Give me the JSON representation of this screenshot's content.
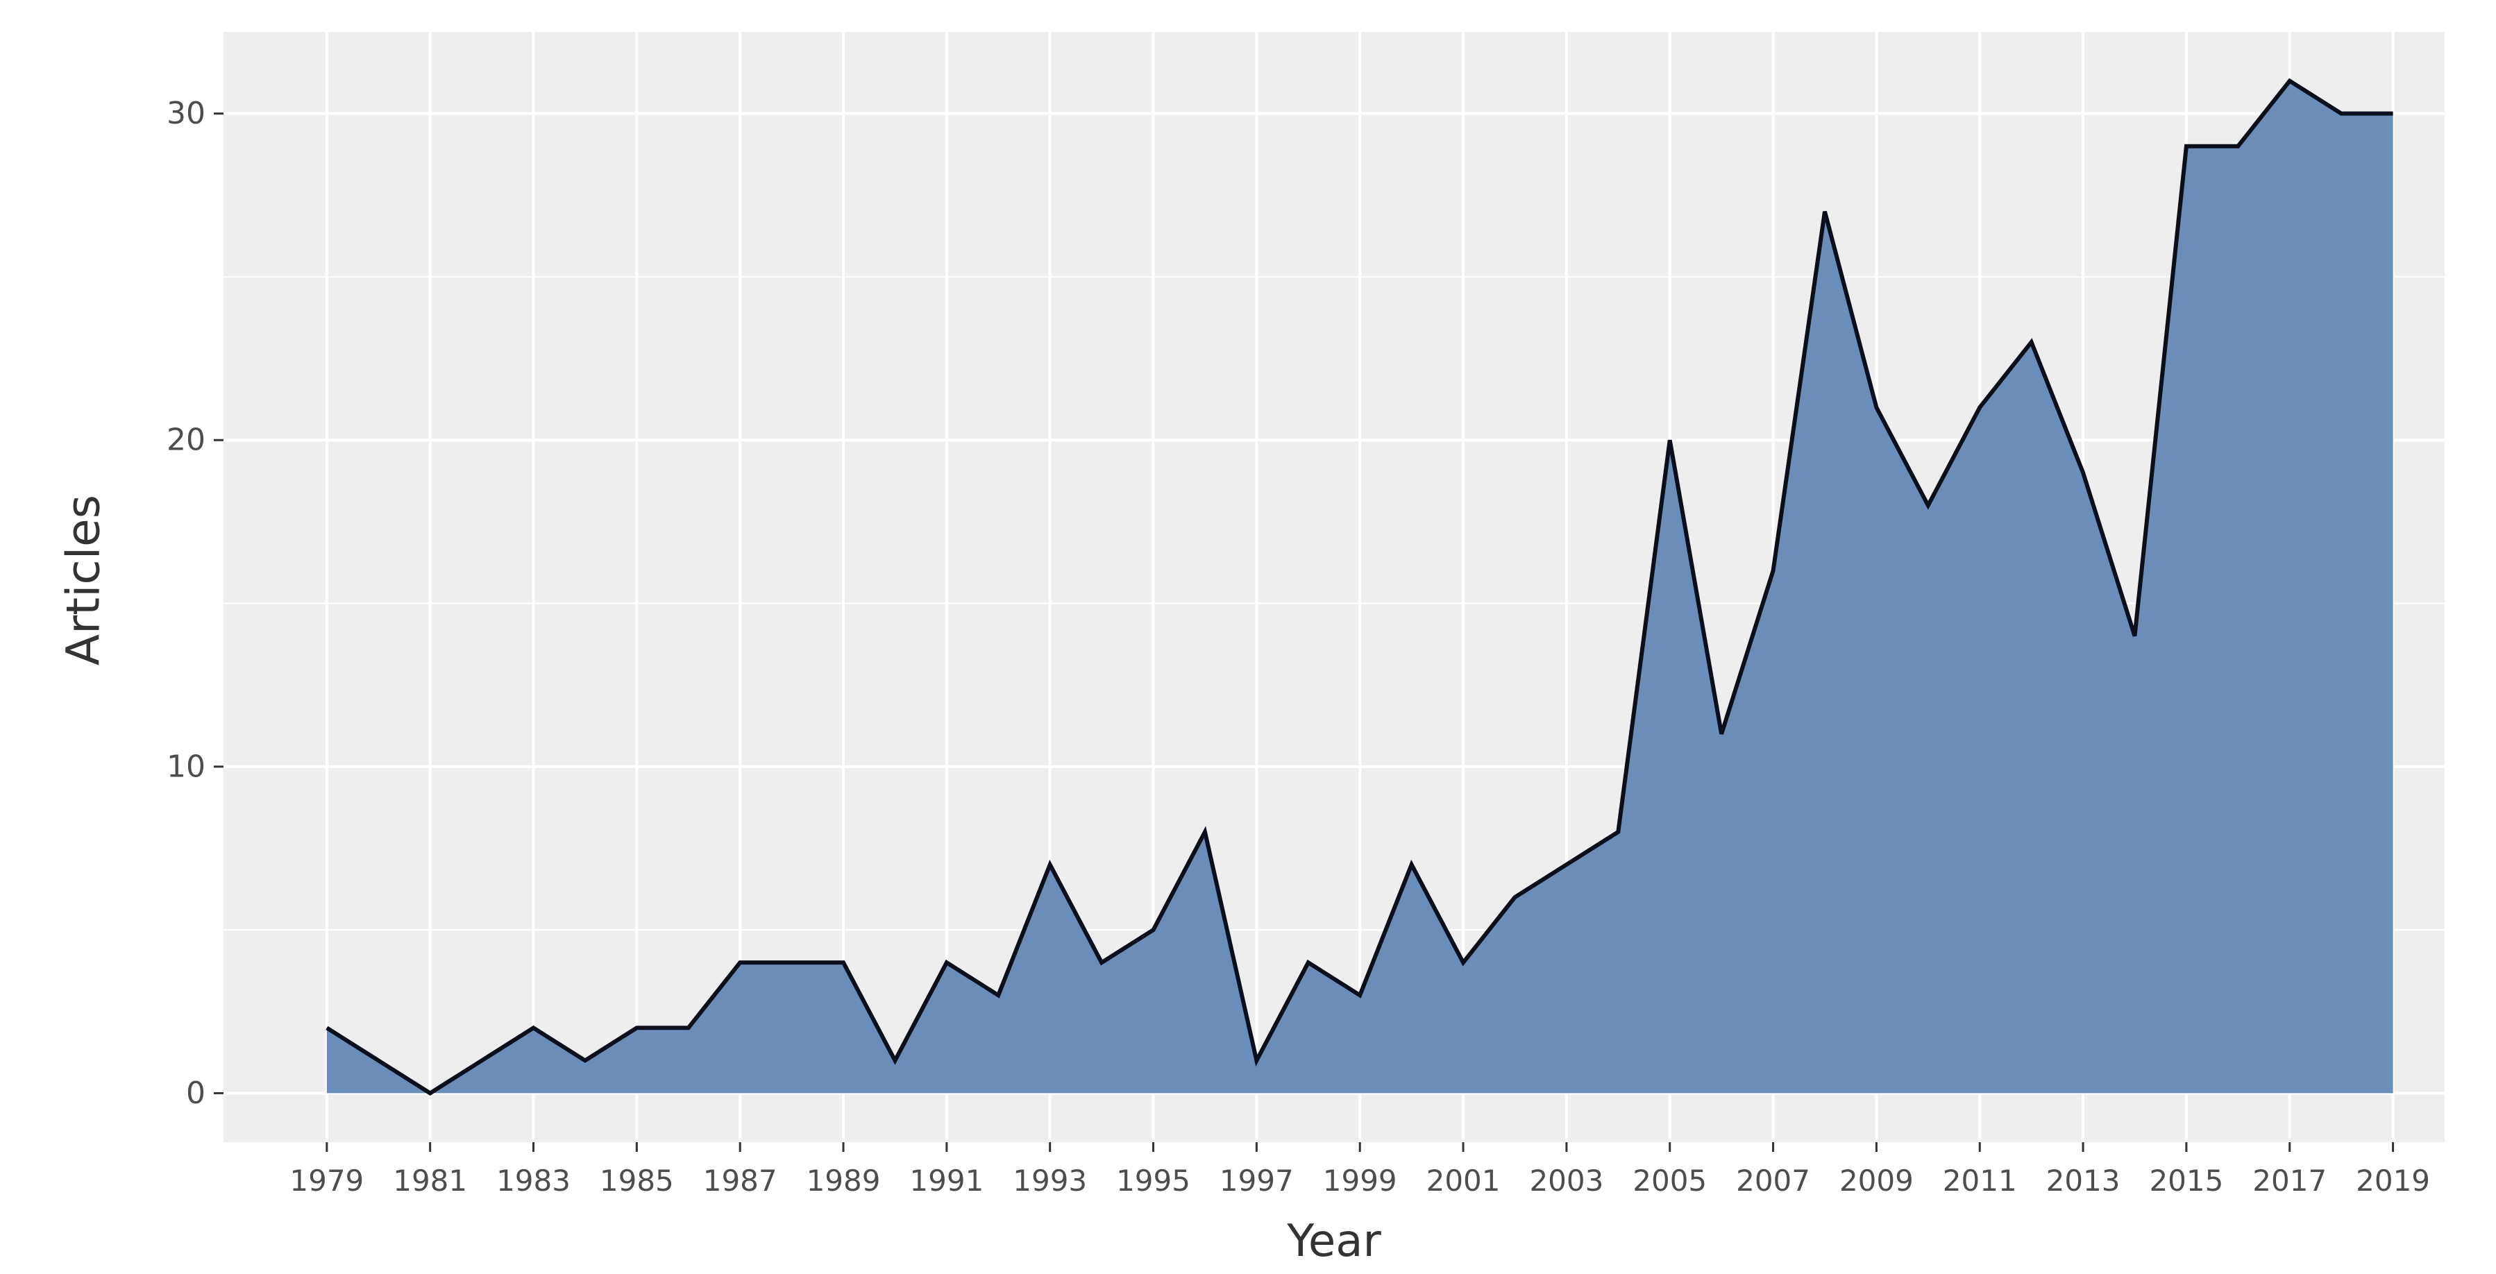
{
  "chart_data": {
    "type": "area",
    "title": "",
    "xlabel": "Year",
    "ylabel": "Articles",
    "x": [
      1979,
      1980,
      1981,
      1982,
      1983,
      1984,
      1985,
      1986,
      1987,
      1988,
      1989,
      1990,
      1991,
      1992,
      1993,
      1994,
      1995,
      1996,
      1997,
      1998,
      1999,
      2000,
      2001,
      2002,
      2003,
      2004,
      2005,
      2006,
      2007,
      2008,
      2009,
      2010,
      2011,
      2012,
      2013,
      2014,
      2015,
      2016,
      2017,
      2018,
      2019
    ],
    "values": [
      2,
      1,
      0,
      1,
      2,
      1,
      2,
      2,
      4,
      4,
      4,
      1,
      4,
      3,
      7,
      4,
      5,
      8,
      1,
      4,
      3,
      7,
      4,
      6,
      7,
      8,
      20,
      11,
      16,
      27,
      21,
      18,
      21,
      23,
      19,
      14,
      29,
      29,
      31,
      30,
      30
    ],
    "xticks": [
      "1979",
      "1981",
      "1983",
      "1985",
      "1987",
      "1989",
      "1991",
      "1993",
      "1995",
      "1997",
      "1999",
      "2001",
      "2003",
      "2005",
      "2007",
      "2009",
      "2011",
      "2013",
      "2015",
      "2017",
      "2019"
    ],
    "yticks": [
      "0",
      "10",
      "20",
      "30"
    ],
    "xlim": [
      1977,
      2020
    ],
    "ylim": [
      -1.5,
      32.5
    ],
    "grid": true,
    "legend": "none",
    "colors": {
      "fill": "#6a8eb9",
      "line": "#0b0f1c",
      "panel": "#eeeeee",
      "grid": "#ffffff"
    }
  }
}
